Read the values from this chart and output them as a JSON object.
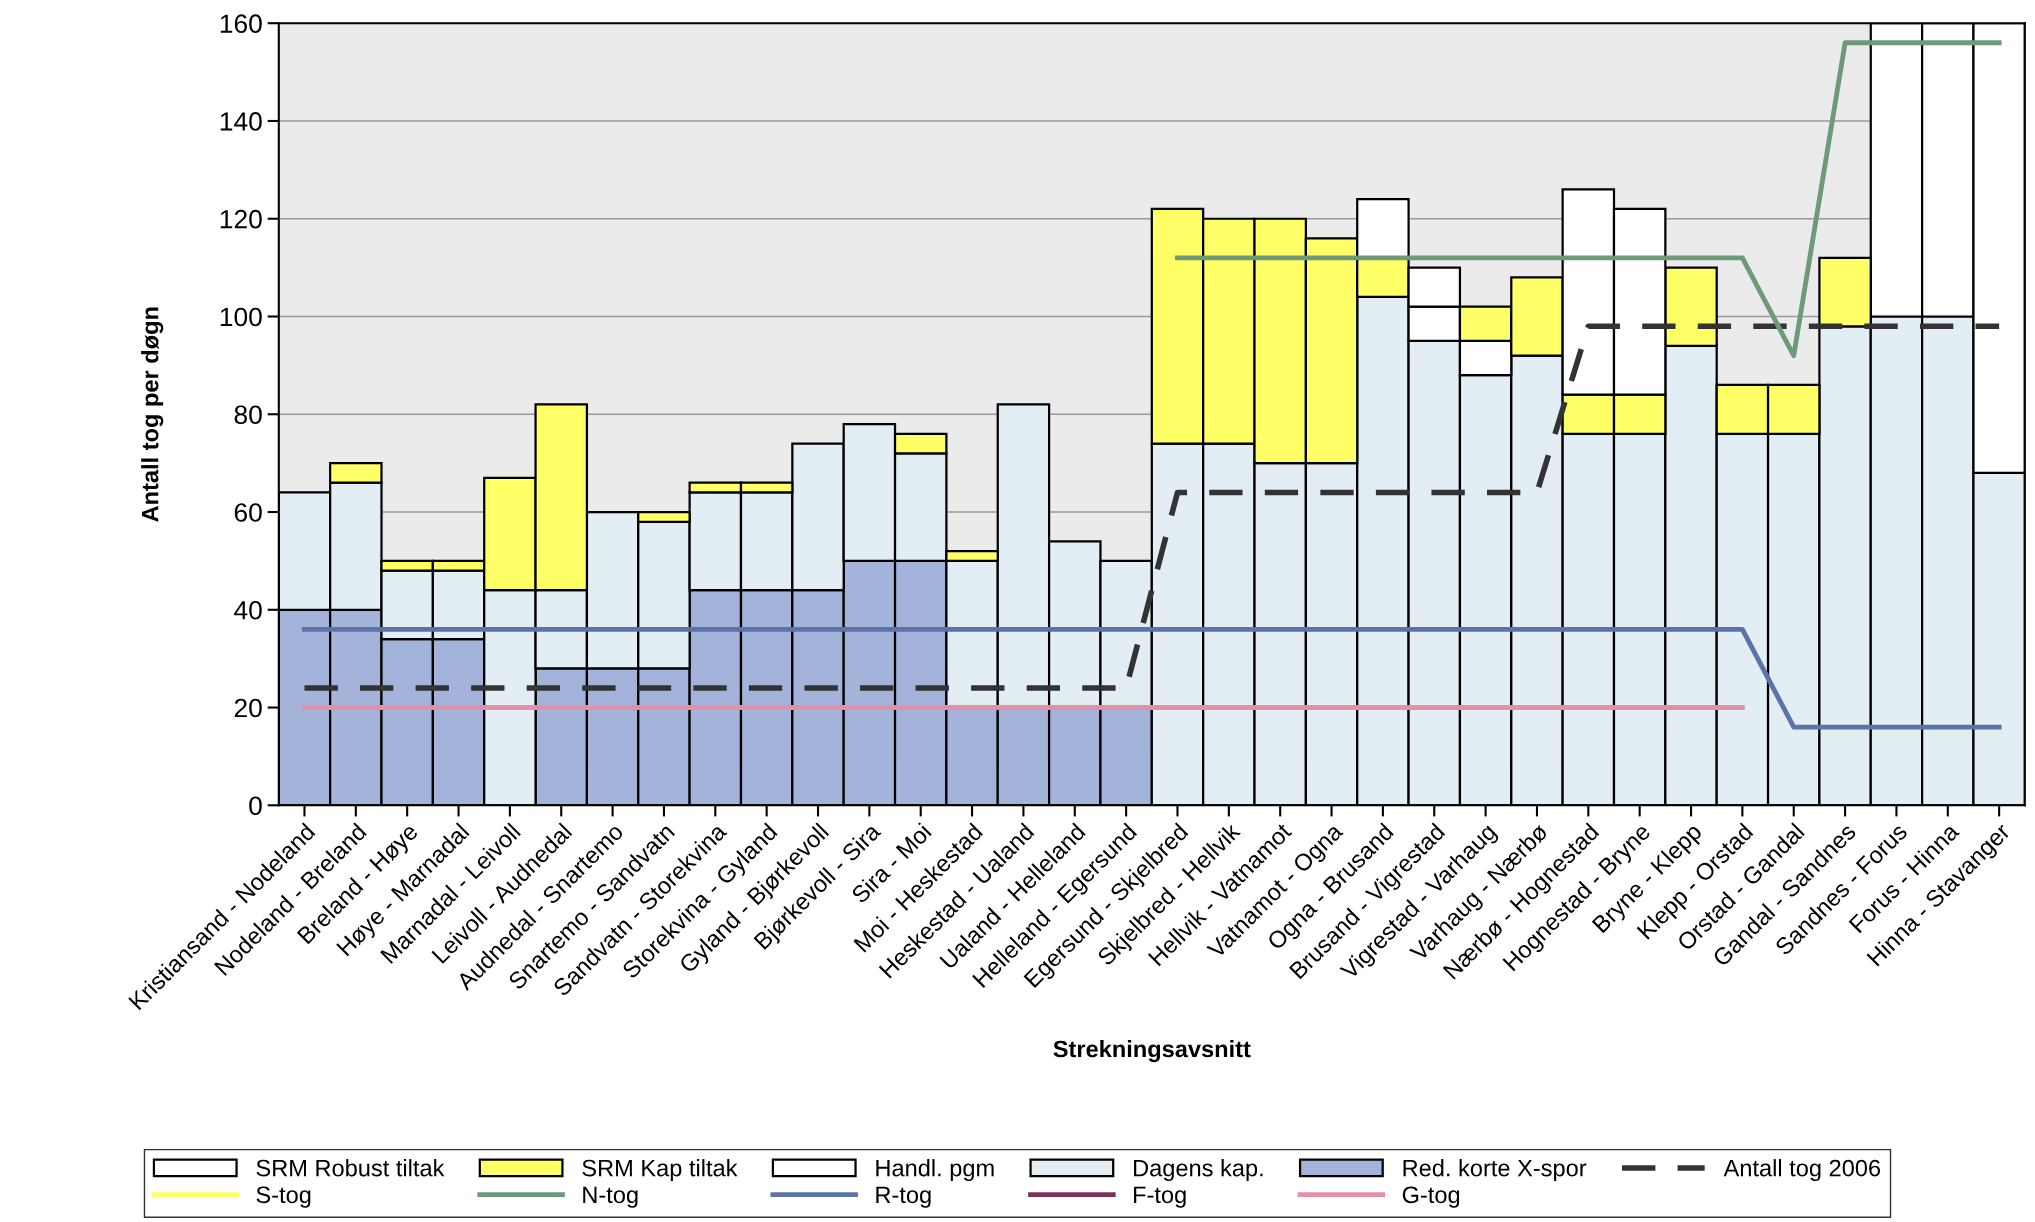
{
  "chart_data": {
    "type": "bar",
    "stacked": true,
    "xlabel": "Strekningsavsnitt",
    "ylabel": "Antall tog per døgn",
    "categories": [
      "Kristiansand - Nodeland",
      "Nodeland - Breland",
      "Breland - Høye",
      "Høye - Marnadal",
      "Marnadal - Leivoll",
      "Leivoll - Audnedal",
      "Audnedal - Snartemo",
      "Snartemo - Sandvatn",
      "Sandvatn - Storekvina",
      "Storekvina - Gyland",
      "Gyland - Bjørkevoll",
      "Bjørkevoll - Sira",
      "Sira - Moi",
      "Moi - Heskestad",
      "Heskestad - Ualand",
      "Ualand - Helleland",
      "Helleland - Egersund",
      "Egersund - Skjelbred",
      "Skjelbred - Hellvik",
      "Hellvik - Vatnamot",
      "Vatnamot - Ogna",
      "Ogna - Brusand",
      "Brusand - Vigrestad",
      "Vigrestad - Varhaug",
      "Varhaug - Nærbø",
      "Nærbø - Hognestad",
      "Hognestad - Bryne",
      "Bryne - Klepp",
      "Klepp - Orstad",
      "Orstad - Gandal",
      "Gandal - Sandnes",
      "Sandnes - Forus",
      "Forus - Hinna",
      "Hinna - Stavanger"
    ],
    "series": [
      {
        "name": "Red. korte X-spor",
        "color": "#a3b3da",
        "values": [
          40,
          40,
          34,
          34,
          null,
          28,
          28,
          28,
          44,
          44,
          44,
          50,
          50,
          20,
          20,
          20,
          20,
          null,
          null,
          null,
          null,
          null,
          null,
          null,
          null,
          null,
          null,
          null,
          null,
          null,
          null,
          null,
          null,
          null
        ]
      },
      {
        "name": "Dagens kap.",
        "color": "#e2edf4",
        "values": [
          24,
          26,
          14,
          14,
          44,
          16,
          32,
          30,
          20,
          20,
          30,
          28,
          22,
          30,
          62,
          34,
          30,
          74,
          74,
          70,
          70,
          104,
          95,
          88,
          92,
          76,
          76,
          94,
          76,
          76,
          98,
          100,
          100,
          68
        ]
      },
      {
        "name": "Handl. pgm",
        "color": "#ffffff",
        "values": [
          null,
          null,
          null,
          null,
          null,
          null,
          null,
          null,
          null,
          null,
          null,
          null,
          null,
          null,
          null,
          null,
          null,
          null,
          null,
          null,
          null,
          null,
          7,
          7,
          null,
          null,
          null,
          null,
          null,
          null,
          null,
          60,
          60,
          92
        ]
      },
      {
        "name": "SRM Kap tiltak",
        "color": "#ffff66",
        "values": [
          null,
          4,
          2,
          2,
          23,
          38,
          null,
          2,
          2,
          2,
          null,
          null,
          4,
          2,
          null,
          null,
          null,
          48,
          46,
          50,
          46,
          8,
          null,
          7,
          16,
          8,
          8,
          16,
          10,
          10,
          14,
          null,
          null,
          null
        ]
      },
      {
        "name": "SRM Robust tiltak",
        "color": "#ffffff",
        "values": [
          null,
          null,
          null,
          null,
          null,
          null,
          null,
          null,
          null,
          null,
          null,
          null,
          null,
          null,
          null,
          null,
          null,
          null,
          null,
          null,
          null,
          12,
          8,
          null,
          null,
          42,
          38,
          null,
          null,
          null,
          null,
          null,
          null,
          null
        ]
      },
      {
        "name": "Antall tog 2006",
        "type": "line",
        "line_style": "dashed",
        "color": "#333333",
        "values": [
          24,
          24,
          24,
          24,
          24,
          24,
          24,
          24,
          24,
          24,
          24,
          24,
          24,
          24,
          24,
          24,
          24,
          64,
          64,
          64,
          64,
          64,
          64,
          64,
          64,
          98,
          98,
          98,
          98,
          98,
          98,
          98,
          98,
          98
        ]
      },
      {
        "name": "S-tog",
        "type": "line",
        "line_style": "solid",
        "color": "#ffff66",
        "values": [
          null,
          null,
          null,
          null,
          null,
          null,
          null,
          null,
          null,
          null,
          null,
          null,
          null,
          null,
          null,
          null,
          null,
          null,
          null,
          null,
          null,
          null,
          null,
          null,
          null,
          null,
          null,
          null,
          null,
          null,
          null,
          null,
          null,
          null
        ]
      },
      {
        "name": "N-tog",
        "type": "line",
        "line_style": "solid",
        "color": "#6e9a78",
        "values": [
          null,
          null,
          null,
          null,
          null,
          null,
          null,
          null,
          null,
          null,
          null,
          null,
          null,
          null,
          null,
          null,
          null,
          112,
          112,
          112,
          112,
          112,
          112,
          112,
          112,
          112,
          112,
          112,
          112,
          92,
          156,
          156,
          156,
          156
        ]
      },
      {
        "name": "R-tog",
        "type": "line",
        "line_style": "solid",
        "color": "#5a73a8",
        "values": [
          36,
          36,
          36,
          36,
          36,
          36,
          36,
          36,
          36,
          36,
          36,
          36,
          36,
          36,
          36,
          36,
          36,
          36,
          36,
          36,
          36,
          36,
          36,
          36,
          36,
          36,
          36,
          36,
          36,
          16,
          16,
          16,
          16,
          16
        ]
      },
      {
        "name": "F-tog",
        "type": "line",
        "line_style": "solid",
        "color": "#7a3062",
        "values": [
          null,
          null,
          null,
          null,
          null,
          null,
          null,
          null,
          null,
          null,
          null,
          null,
          null,
          null,
          null,
          null,
          null,
          null,
          null,
          null,
          null,
          null,
          null,
          null,
          null,
          null,
          null,
          null,
          null,
          null,
          null,
          null,
          null,
          null
        ]
      },
      {
        "name": "G-tog",
        "type": "line",
        "line_style": "solid",
        "color": "#e38fa8",
        "values": [
          20,
          20,
          20,
          20,
          20,
          20,
          20,
          20,
          20,
          20,
          20,
          20,
          20,
          20,
          20,
          20,
          20,
          20,
          20,
          20,
          20,
          20,
          20,
          20,
          20,
          20,
          20,
          20,
          20,
          null,
          null,
          null,
          null,
          null
        ]
      }
    ],
    "ylim": [
      0,
      160
    ],
    "yticks": [
      0,
      20,
      40,
      60,
      80,
      100,
      120,
      140,
      160
    ],
    "grid": "y",
    "legend": "bottom"
  }
}
